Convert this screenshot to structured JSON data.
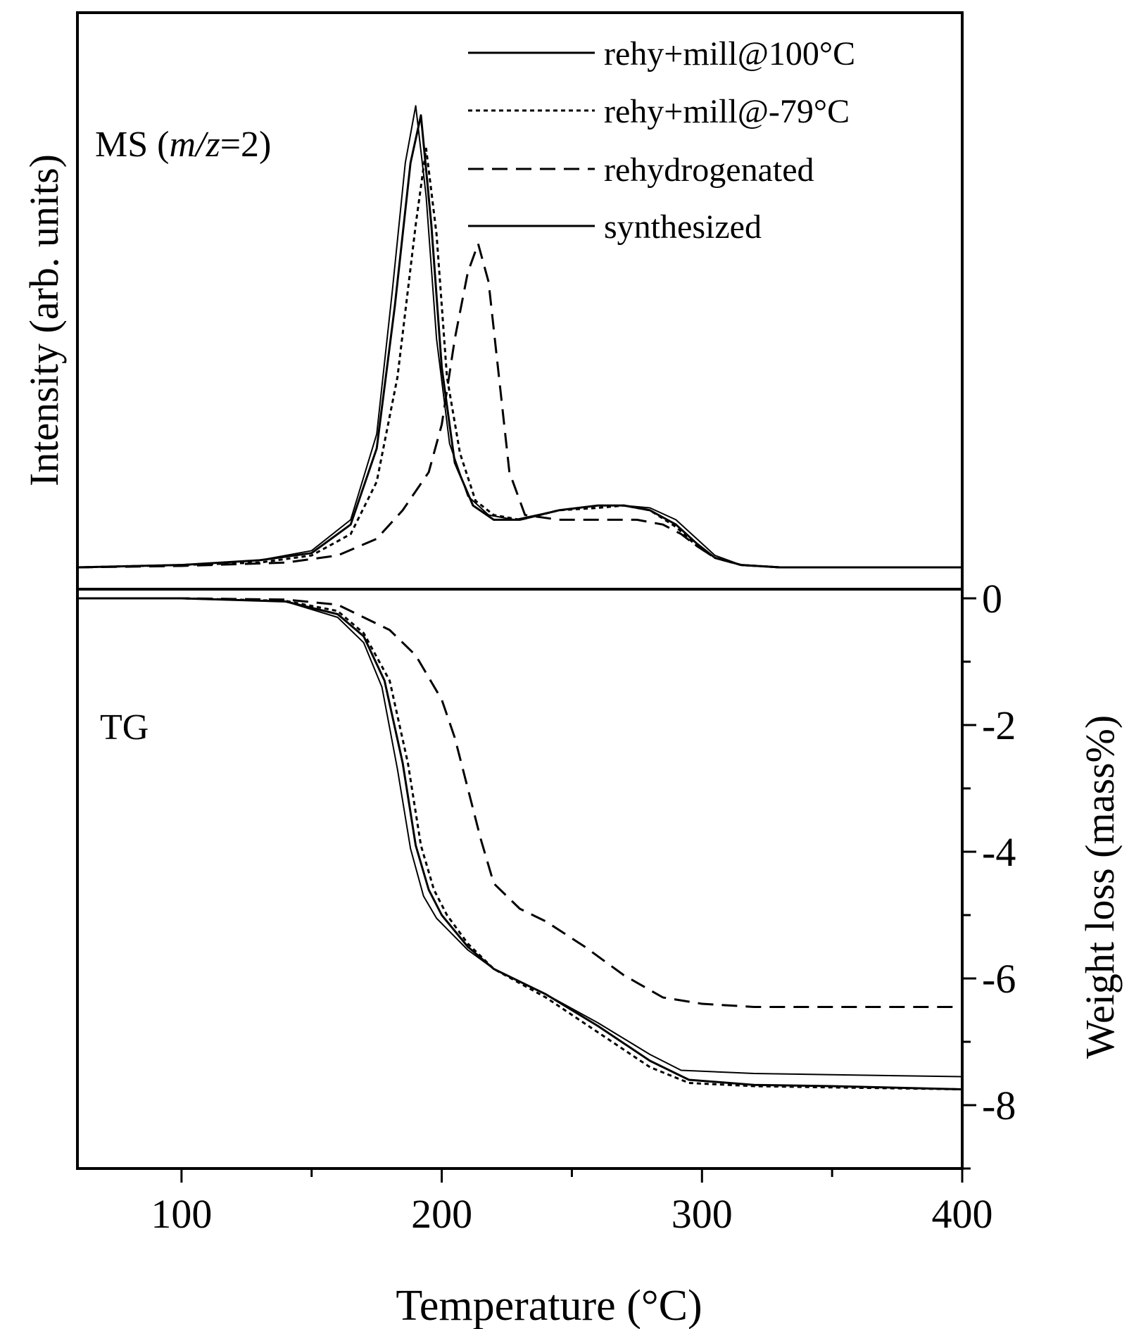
{
  "colors": {
    "line": "#000000",
    "background": "#ffffff"
  },
  "chart_data": [
    {
      "panel": "top",
      "type": "line",
      "label_prefix": "MS (",
      "label_italic": "m/z",
      "label_suffix": "=2)",
      "ylabel": "Intensity (arb. units)",
      "xlim": [
        60,
        400
      ],
      "ylim": [
        0,
        1.0
      ],
      "legend_position": "top-right",
      "series": [
        {
          "name": "rehy+mill@100°C",
          "style": "solid",
          "x": [
            60,
            100,
            130,
            150,
            165,
            175,
            182,
            188,
            192,
            196,
            200,
            205,
            212,
            220,
            230,
            245,
            260,
            270,
            280,
            290,
            298,
            305,
            315,
            330,
            400
          ],
          "y": [
            0.0,
            0.005,
            0.015,
            0.03,
            0.09,
            0.25,
            0.55,
            0.85,
            0.95,
            0.72,
            0.42,
            0.22,
            0.13,
            0.1,
            0.1,
            0.12,
            0.13,
            0.13,
            0.12,
            0.09,
            0.05,
            0.02,
            0.005,
            0.0,
            0.0
          ]
        },
        {
          "name": "rehy+mill@-79°C",
          "style": "dotted",
          "x": [
            60,
            100,
            130,
            150,
            165,
            175,
            183,
            190,
            194,
            198,
            202,
            207,
            213,
            220,
            230,
            245,
            260,
            270,
            280,
            290,
            298,
            305,
            315,
            330,
            400
          ],
          "y": [
            0.0,
            0.005,
            0.01,
            0.025,
            0.07,
            0.18,
            0.4,
            0.72,
            0.88,
            0.7,
            0.4,
            0.24,
            0.14,
            0.11,
            0.1,
            0.12,
            0.125,
            0.13,
            0.12,
            0.085,
            0.045,
            0.02,
            0.005,
            0.0,
            0.0
          ]
        },
        {
          "name": "rehydrogenated",
          "style": "dashed",
          "x": [
            60,
            100,
            140,
            160,
            175,
            185,
            195,
            200,
            205,
            210,
            214,
            218,
            222,
            226,
            232,
            245,
            260,
            275,
            285,
            292,
            298,
            305,
            315,
            330,
            400
          ],
          "y": [
            0.0,
            0.003,
            0.01,
            0.025,
            0.06,
            0.12,
            0.2,
            0.3,
            0.48,
            0.62,
            0.68,
            0.6,
            0.4,
            0.2,
            0.11,
            0.1,
            0.1,
            0.1,
            0.09,
            0.07,
            0.045,
            0.02,
            0.005,
            0.0,
            0.0
          ]
        },
        {
          "name": "synthesized",
          "style": "solid",
          "x": [
            60,
            100,
            130,
            150,
            165,
            175,
            181,
            186,
            190,
            194,
            198,
            203,
            210,
            218,
            228,
            245,
            260,
            270,
            280,
            290,
            298,
            305,
            315,
            330,
            400
          ],
          "y": [
            0.0,
            0.005,
            0.015,
            0.035,
            0.1,
            0.28,
            0.58,
            0.85,
            0.97,
            0.78,
            0.48,
            0.26,
            0.15,
            0.11,
            0.1,
            0.12,
            0.13,
            0.13,
            0.125,
            0.1,
            0.06,
            0.025,
            0.005,
            0.0,
            0.0
          ]
        }
      ]
    },
    {
      "panel": "bottom",
      "type": "line",
      "label": "TG",
      "xlabel": "Temperature (°C)",
      "ylabel": "Weight loss (mass%)",
      "xlim": [
        60,
        400
      ],
      "ylim": [
        -9,
        0.2
      ],
      "xticks": [
        100,
        200,
        300,
        400
      ],
      "yticks": [
        0,
        -2,
        -4,
        -6,
        -8
      ],
      "series": [
        {
          "name": "rehy+mill@100°C",
          "style": "solid",
          "x": [
            60,
            100,
            140,
            160,
            170,
            178,
            185,
            190,
            195,
            200,
            210,
            220,
            240,
            260,
            280,
            295,
            320,
            350,
            400
          ],
          "y": [
            0,
            0,
            -0.05,
            -0.25,
            -0.6,
            -1.3,
            -2.6,
            -3.9,
            -4.6,
            -5.0,
            -5.5,
            -5.85,
            -6.25,
            -6.75,
            -7.3,
            -7.6,
            -7.68,
            -7.7,
            -7.75
          ]
        },
        {
          "name": "rehy+mill@-79°C",
          "style": "dotted",
          "x": [
            60,
            100,
            140,
            160,
            170,
            180,
            187,
            192,
            197,
            202,
            210,
            220,
            240,
            260,
            280,
            295,
            320,
            350,
            400
          ],
          "y": [
            0,
            0,
            -0.04,
            -0.2,
            -0.55,
            -1.3,
            -2.6,
            -3.9,
            -4.6,
            -5.0,
            -5.45,
            -5.85,
            -6.3,
            -6.85,
            -7.4,
            -7.65,
            -7.7,
            -7.72,
            -7.75
          ]
        },
        {
          "name": "rehydrogenated",
          "style": "dashed",
          "x": [
            60,
            100,
            140,
            160,
            180,
            190,
            200,
            205,
            210,
            215,
            220,
            230,
            240,
            255,
            270,
            285,
            300,
            320,
            350,
            400
          ],
          "y": [
            0,
            0,
            -0.02,
            -0.1,
            -0.5,
            -0.9,
            -1.6,
            -2.2,
            -3.0,
            -3.8,
            -4.5,
            -4.9,
            -5.1,
            -5.5,
            -5.95,
            -6.3,
            -6.4,
            -6.45,
            -6.45,
            -6.45
          ]
        },
        {
          "name": "synthesized",
          "style": "solid",
          "x": [
            60,
            100,
            140,
            160,
            170,
            177,
            183,
            188,
            193,
            198,
            210,
            220,
            240,
            260,
            280,
            292,
            320,
            350,
            400
          ],
          "y": [
            0,
            0,
            -0.05,
            -0.3,
            -0.7,
            -1.4,
            -2.7,
            -3.95,
            -4.7,
            -5.05,
            -5.55,
            -5.85,
            -6.25,
            -6.7,
            -7.2,
            -7.45,
            -7.5,
            -7.52,
            -7.55
          ]
        }
      ]
    }
  ]
}
